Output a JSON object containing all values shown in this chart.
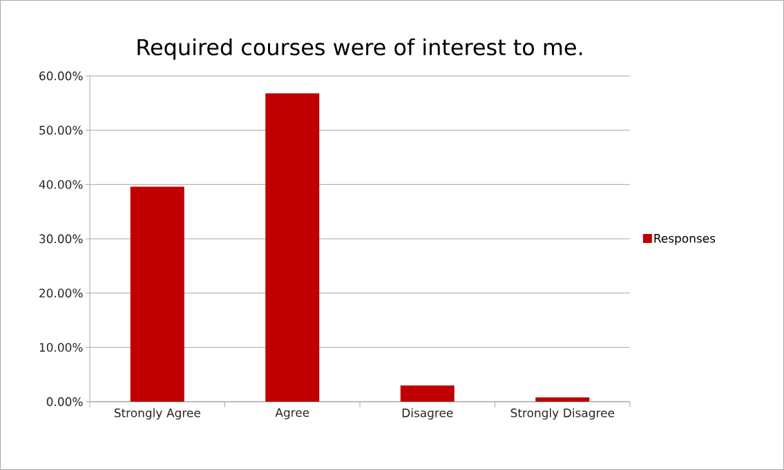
{
  "chart_data": {
    "type": "bar",
    "title": "Required courses were of interest to me.",
    "categories": [
      "Strongly Agree",
      "Agree",
      "Disagree",
      "Strongly Disagree"
    ],
    "series": [
      {
        "name": "Responses",
        "color": "#c00000",
        "values": [
          39.6,
          56.8,
          3.0,
          0.8
        ]
      }
    ],
    "ylim": [
      0,
      60
    ],
    "yticks": [
      {
        "value": 0,
        "label": "0.00%"
      },
      {
        "value": 10,
        "label": "10.00%"
      },
      {
        "value": 20,
        "label": "20.00%"
      },
      {
        "value": 30,
        "label": "30.00%"
      },
      {
        "value": 40,
        "label": "40.00%"
      },
      {
        "value": 50,
        "label": "50.00%"
      },
      {
        "value": 60,
        "label": "60.00%"
      }
    ],
    "grid": "y",
    "legend": "right"
  }
}
